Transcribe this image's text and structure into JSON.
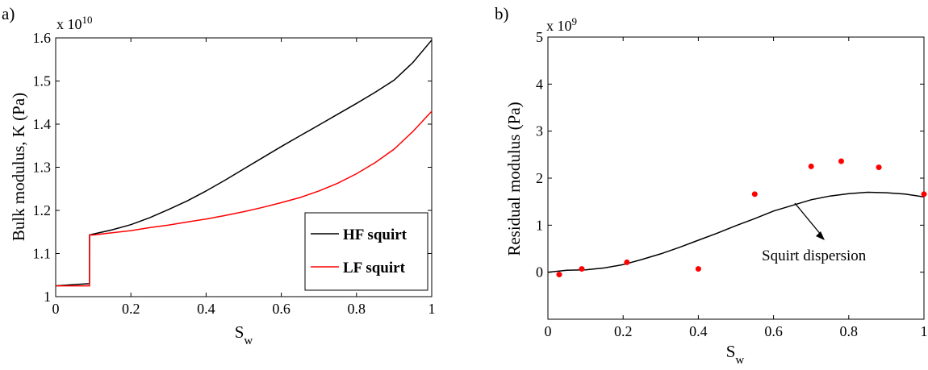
{
  "chart_data": [
    {
      "type": "line",
      "panel_label": "a)",
      "xlabel_main": "S",
      "xlabel_sub": "w",
      "ylabel": "Bulk modulus, K (Pa)",
      "y_multiplier_base": "x 10",
      "y_multiplier_exp": "10",
      "xlim": [
        0,
        1
      ],
      "ylim": [
        1.0,
        1.6
      ],
      "x_ticks": [
        0,
        0.2,
        0.4,
        0.6,
        0.8,
        1
      ],
      "x_tick_labels": [
        "0",
        "0.2",
        "0.4",
        "0.6",
        "0.8",
        "1"
      ],
      "y_ticks": [
        1.0,
        1.1,
        1.2,
        1.3,
        1.4,
        1.5,
        1.6
      ],
      "y_tick_labels": [
        "1",
        "1.1",
        "1.2",
        "1.3",
        "1.4",
        "1.5",
        "1.6"
      ],
      "grid": false,
      "legend_position": "bottom-right",
      "series": [
        {
          "name": "HF squirt",
          "color": "#000000",
          "x": [
            0,
            0.05,
            0.09,
            0.0901,
            0.1,
            0.15,
            0.2,
            0.25,
            0.3,
            0.35,
            0.4,
            0.45,
            0.5,
            0.55,
            0.6,
            0.65,
            0.7,
            0.75,
            0.8,
            0.85,
            0.9,
            0.95,
            1.0
          ],
          "y": [
            1.025,
            1.028,
            1.03,
            1.143,
            1.145,
            1.155,
            1.167,
            1.183,
            1.202,
            1.222,
            1.245,
            1.27,
            1.296,
            1.322,
            1.348,
            1.373,
            1.398,
            1.423,
            1.448,
            1.474,
            1.502,
            1.543,
            1.595
          ]
        },
        {
          "name": "LF squirt",
          "color": "#ff0000",
          "x": [
            0,
            0.05,
            0.09,
            0.0901,
            0.1,
            0.15,
            0.2,
            0.25,
            0.3,
            0.35,
            0.4,
            0.45,
            0.5,
            0.55,
            0.6,
            0.65,
            0.7,
            0.75,
            0.8,
            0.85,
            0.9,
            0.95,
            1.0
          ],
          "y": [
            1.025,
            1.025,
            1.025,
            1.143,
            1.143,
            1.148,
            1.153,
            1.16,
            1.166,
            1.173,
            1.18,
            1.188,
            1.197,
            1.207,
            1.218,
            1.23,
            1.245,
            1.263,
            1.285,
            1.311,
            1.342,
            1.383,
            1.43
          ]
        }
      ]
    },
    {
      "type": "line",
      "panel_label": "b)",
      "xlabel_main": "S",
      "xlabel_sub": "w",
      "ylabel": "Residual modulus (Pa)",
      "y_multiplier_base": "x 10",
      "y_multiplier_exp": "9",
      "xlim": [
        0,
        1
      ],
      "ylim": [
        -1,
        5
      ],
      "x_ticks": [
        0,
        0.2,
        0.4,
        0.6,
        0.8,
        1
      ],
      "x_tick_labels": [
        "0",
        "0.2",
        "0.4",
        "0.6",
        "0.8",
        "1"
      ],
      "y_ticks": [
        0,
        1,
        2,
        3,
        4,
        5
      ],
      "y_tick_labels": [
        "0",
        "1",
        "2",
        "3",
        "4",
        "5"
      ],
      "grid": false,
      "annotation": "Squirt dispersion",
      "series": [
        {
          "color": "#000000",
          "x": [
            0,
            0.05,
            0.1,
            0.15,
            0.2,
            0.25,
            0.3,
            0.35,
            0.4,
            0.45,
            0.5,
            0.55,
            0.6,
            0.65,
            0.7,
            0.75,
            0.8,
            0.85,
            0.9,
            0.95,
            1.0
          ],
          "y": [
            0.0,
            0.04,
            0.05,
            0.09,
            0.16,
            0.27,
            0.39,
            0.53,
            0.68,
            0.83,
            0.99,
            1.14,
            1.3,
            1.42,
            1.54,
            1.62,
            1.67,
            1.7,
            1.69,
            1.66,
            1.6
          ]
        },
        {
          "color": "#ff0000",
          "x": [
            0.03,
            0.09,
            0.21,
            0.4,
            0.55,
            0.7,
            0.78,
            0.88,
            1.0
          ],
          "y": [
            -0.05,
            0.07,
            0.21,
            0.07,
            1.66,
            2.25,
            2.36,
            2.23,
            1.66
          ]
        }
      ]
    }
  ]
}
